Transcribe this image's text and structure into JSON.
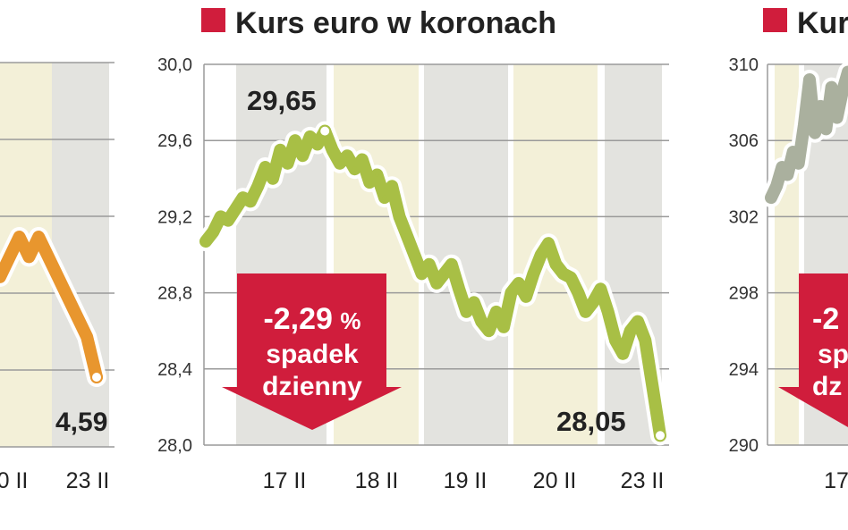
{
  "colors": {
    "left_line": "#e8962e",
    "center_line": "#a8bf45",
    "right_line": "#aab09e",
    "band_light": "#f3f0d8",
    "band_grey": "#e3e3df",
    "gridline": "#9a9a9a",
    "badge_red": "#d01d3c",
    "title_square": "#d01d3c",
    "text": "#222222"
  },
  "chart_data": [
    {
      "id": "left",
      "type": "line",
      "title": "",
      "x_labels": [
        "0 II",
        "23 II"
      ],
      "y_labels": [],
      "series": [
        {
          "values": [
            4.64,
            4.65,
            4.66,
            4.65,
            4.66,
            4.65,
            4.64,
            4.63,
            4.62,
            4.61,
            4.59
          ]
        }
      ],
      "annotations": [
        {
          "label": "4,59"
        }
      ]
    },
    {
      "id": "center",
      "type": "line",
      "title": "Kurs euro w koronach",
      "x_labels": [
        "17 II",
        "18 II",
        "19 II",
        "20 II",
        "23 II"
      ],
      "y_labels": [
        "30,0",
        "29,6",
        "29,2",
        "28,8",
        "28,4",
        "28,0"
      ],
      "ylim": [
        28.0,
        30.0
      ],
      "y_ticks": [
        30.0,
        29.6,
        29.2,
        28.8,
        28.4,
        28.0
      ],
      "grid": true,
      "series": [
        {
          "values": [
            29.07,
            29.12,
            29.2,
            29.18,
            29.24,
            29.3,
            29.28,
            29.36,
            29.46,
            29.4,
            29.55,
            29.48,
            29.6,
            29.52,
            29.62,
            29.58,
            29.65,
            29.55,
            29.48,
            29.52,
            29.45,
            29.5,
            29.38,
            29.42,
            29.3,
            29.36,
            29.2,
            29.1,
            29.0,
            28.9,
            28.95,
            28.85,
            28.9,
            28.95,
            28.82,
            28.7,
            28.75,
            28.65,
            28.6,
            28.7,
            28.62,
            28.8,
            28.85,
            28.78,
            28.9,
            29.0,
            29.06,
            28.95,
            28.9,
            28.88,
            28.8,
            28.7,
            28.75,
            28.82,
            28.7,
            28.55,
            28.48,
            28.6,
            28.65,
            28.55,
            28.3,
            28.05
          ]
        }
      ],
      "annotations": [
        {
          "label": "29,65",
          "value": 29.65
        },
        {
          "label": "28,05",
          "value": 28.05
        }
      ],
      "badge": {
        "value": "-2,29",
        "unit": "%",
        "line2": "spadek",
        "line3": "dzienny"
      }
    },
    {
      "id": "right",
      "type": "line",
      "title": "Kur",
      "x_labels": [
        "17"
      ],
      "y_labels": [
        "310",
        "306",
        "302",
        "298",
        "294",
        "290"
      ],
      "ylim": [
        290,
        310
      ],
      "y_ticks": [
        310,
        306,
        302,
        298,
        294,
        290
      ],
      "series": [
        {
          "values": [
            303.0,
            303.6,
            304.6,
            304.2,
            305.4,
            304.8,
            306.8,
            309.2,
            306.4,
            307.8,
            306.6,
            308.8,
            307.2,
            308.6,
            309.6
          ]
        }
      ],
      "badge": {
        "value": "-2",
        "line2": "sp",
        "line3": "dz"
      }
    }
  ]
}
